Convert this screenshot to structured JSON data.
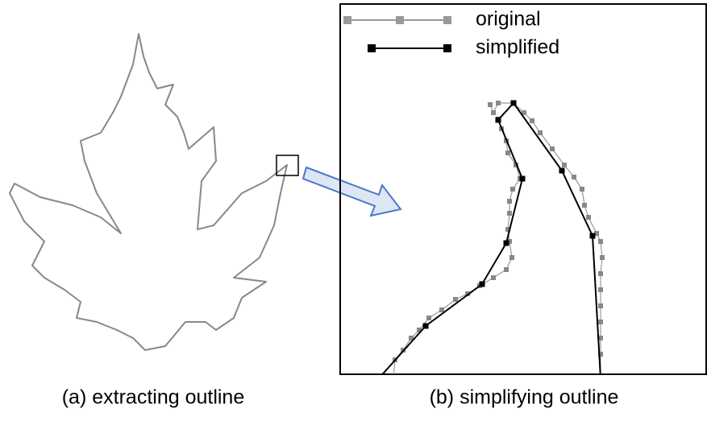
{
  "legend": {
    "items": [
      {
        "label": "original"
      },
      {
        "label": "simplified"
      }
    ]
  },
  "captions": {
    "a": "(a) extracting outline",
    "b": "(b) simplifying outline"
  }
}
